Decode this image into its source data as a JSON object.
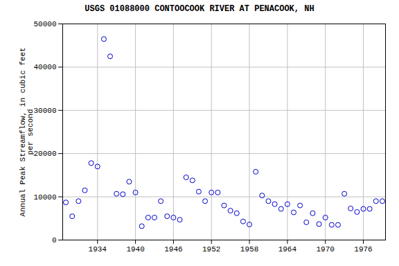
{
  "chart_data": {
    "type": "scatter",
    "title": "USGS 01088000 CONTOOCOOK RIVER AT PENACOOK, NH",
    "ylabel": "Annual Peak Streamflow, in cubic feet\nper second",
    "x": [
      1929,
      1930,
      1931,
      1932,
      1933,
      1934,
      1935,
      1936,
      1937,
      1938,
      1939,
      1940,
      1941,
      1942,
      1943,
      1944,
      1945,
      1946,
      1947,
      1948,
      1949,
      1950,
      1951,
      1952,
      1953,
      1954,
      1955,
      1956,
      1957,
      1958,
      1959,
      1960,
      1961,
      1962,
      1963,
      1964,
      1965,
      1966,
      1967,
      1968,
      1969,
      1970,
      1971,
      1972,
      1973,
      1974,
      1975,
      1976,
      1977,
      1978,
      1979
    ],
    "values": [
      8700,
      5500,
      9000,
      11500,
      17800,
      17000,
      46500,
      42500,
      10700,
      10600,
      13500,
      11000,
      3200,
      5200,
      5200,
      9000,
      5500,
      5200,
      4700,
      14500,
      13800,
      11200,
      9000,
      11000,
      11000,
      8000,
      6800,
      6200,
      4300,
      3600,
      15800,
      10300,
      9000,
      8300,
      7200,
      8300,
      6400,
      8000,
      4100,
      6200,
      3700,
      5200,
      3500,
      3500,
      10700,
      7300,
      6500,
      7200,
      7200,
      9000,
      9000
    ],
    "color": "#0000cc",
    "marker": "circle",
    "xlim": [
      1928.5,
      1979.5
    ],
    "ylim": [
      0,
      50000
    ],
    "xticks": [
      1934,
      1940,
      1946,
      1952,
      1958,
      1964,
      1970,
      1976
    ],
    "yticks": [
      0,
      10000,
      20000,
      30000,
      40000,
      50000
    ],
    "grid": true
  }
}
